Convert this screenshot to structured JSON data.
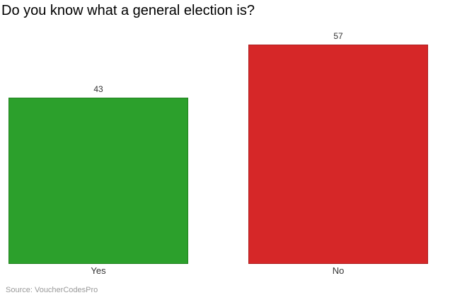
{
  "chart_data": {
    "type": "bar",
    "title": "Do you know what a general election is?",
    "categories": [
      "Yes",
      "No"
    ],
    "values": [
      43,
      57
    ],
    "series_colors": [
      "#2ca02c",
      "#d62728"
    ],
    "bar_edge_colors": [
      "#21821f",
      "#ad1f20"
    ],
    "ylim": [
      0,
      57
    ],
    "grid": false,
    "legend": false,
    "value_labels_shown": true,
    "source_label": "Source: VoucherCodesPro"
  },
  "colors": {
    "background": "#ffffff",
    "title_text": "#000000",
    "label_text": "#333333",
    "source_text": "#999999"
  }
}
